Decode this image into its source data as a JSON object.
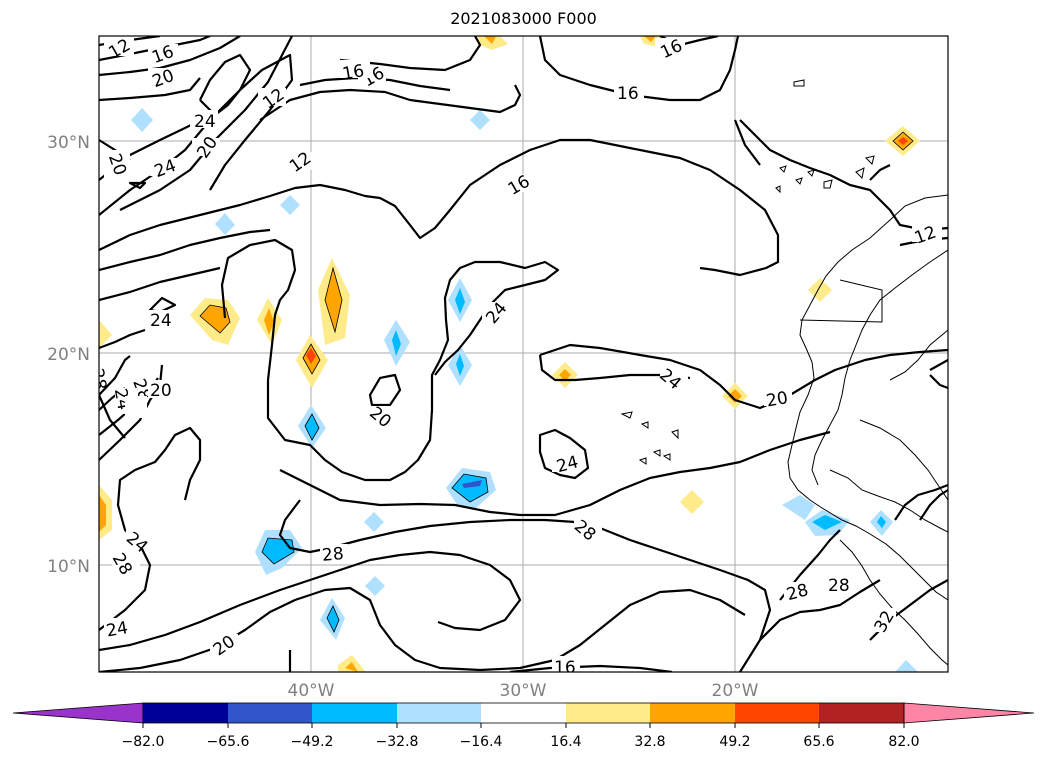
{
  "title": "2021083000 F000",
  "lat_labels": [
    "30°N",
    "20°N",
    "10°N"
  ],
  "lon_labels": [
    "40°W",
    "30°W",
    "20°W"
  ],
  "colorbar": {
    "colors": [
      "#9933cc",
      "#000099",
      "#3355cc",
      "#00bbff",
      "#b0e0ff",
      "#ffffff",
      "#ffeb8a",
      "#ffa500",
      "#ff4500",
      "#b22222",
      "#ff85a7"
    ],
    "ticks": [
      "−82.0",
      "−65.6",
      "−49.2",
      "−32.8",
      "−16.4",
      "16.4",
      "32.8",
      "49.2",
      "65.6",
      "82.0"
    ]
  },
  "contour_labels": [
    "12",
    "16",
    "20",
    "16",
    "12",
    "24",
    "20",
    "24",
    "20",
    "12",
    "16",
    "16",
    "16",
    "12",
    "24",
    "16",
    "24",
    "28",
    "20",
    "24",
    "20",
    "24",
    "28",
    "24",
    "28",
    "20",
    "28",
    "24",
    "28",
    "28",
    "20",
    "16",
    "32",
    "24"
  ]
}
